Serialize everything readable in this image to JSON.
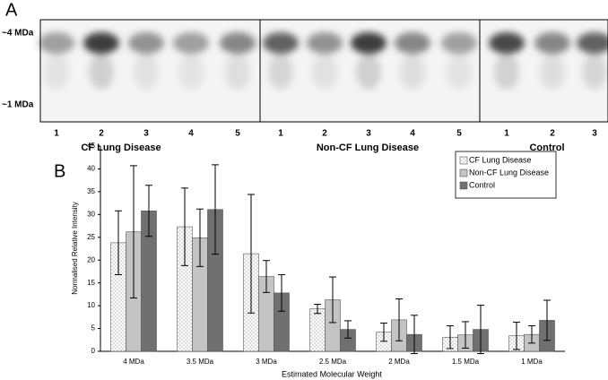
{
  "panel_a": {
    "label": "A",
    "marker_high": "~4 MDa",
    "marker_low": "~1 MDa",
    "groups": [
      {
        "name": "CF Lung Disease",
        "lanes": [
          "1",
          "2",
          "3",
          "4",
          "5"
        ]
      },
      {
        "name": "Non-CF Lung Disease",
        "lanes": [
          "1",
          "2",
          "3",
          "4",
          "5"
        ]
      },
      {
        "name": "Control",
        "lanes": [
          "1",
          "2",
          "3"
        ]
      }
    ]
  },
  "chart_data": {
    "type": "bar",
    "label": "B",
    "x_label": "Estimated Molecular Weight",
    "y_label": "Normalised Relative Intensity",
    "categories": [
      "4 MDa",
      "3.5 MDa",
      "3 MDa",
      "2.5 MDa",
      "2 MDa",
      "1.5 MDa",
      "1 MDa"
    ],
    "series": [
      {
        "name": "CF Lung Disease",
        "color": "#ffffff",
        "pattern": "dots",
        "values": [
          23.8,
          27.3,
          21.4,
          9.3,
          4.2,
          3.1,
          3.4
        ],
        "errors": [
          7,
          8.5,
          13,
          1,
          2,
          2.5,
          3
        ]
      },
      {
        "name": "Non-CF Lung Disease",
        "color": "#c4c4c4",
        "values": [
          26.2,
          24.9,
          16.4,
          11.3,
          6.9,
          3.6,
          3.7
        ],
        "errors": [
          14.5,
          6.3,
          3.5,
          5,
          4.6,
          2.9,
          1.9
        ]
      },
      {
        "name": "Control",
        "color": "#707070",
        "values": [
          30.8,
          31.1,
          12.8,
          4.8,
          3.7,
          4.8,
          6.8
        ],
        "errors": [
          5.6,
          9.8,
          4,
          1.9,
          4.2,
          5.3,
          4.4
        ]
      }
    ],
    "ylim": [
      0,
      45
    ],
    "yticks": [
      0,
      5,
      10,
      15,
      20,
      25,
      30,
      35,
      40,
      45
    ],
    "legend": "top-right"
  }
}
